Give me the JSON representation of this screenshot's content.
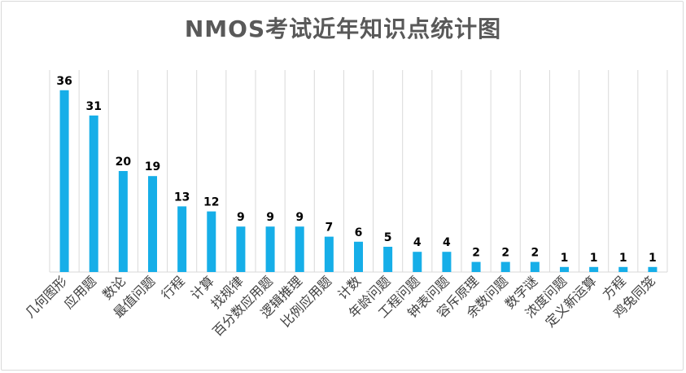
{
  "chart_data": {
    "type": "bar",
    "title": "NMOS考试近年知识点统计图",
    "xlabel": "",
    "ylabel": "",
    "ylim": [
      0,
      40
    ],
    "grid": "vertical category separators",
    "bar_color": "#16aee8",
    "categories": [
      "几何图形",
      "应用题",
      "数论",
      "最值问题",
      "行程",
      "计算",
      "找规律",
      "百分数应用题",
      "逻辑推理",
      "比例应用题",
      "计数",
      "年龄问题",
      "工程问题",
      "钟表问题",
      "容斥原理",
      "余数问题",
      "数字谜",
      "浓度问题",
      "定义新运算",
      "方程",
      "鸡兔同笼"
    ],
    "values": [
      36,
      31,
      20,
      19,
      13,
      12,
      9,
      9,
      9,
      7,
      6,
      5,
      4,
      4,
      2,
      2,
      2,
      1,
      1,
      1,
      1
    ]
  }
}
